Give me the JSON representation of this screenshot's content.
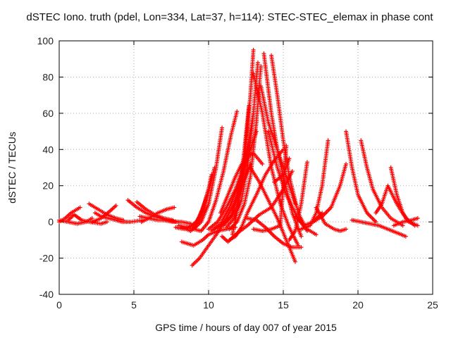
{
  "chart_data": {
    "type": "scatter",
    "title": "dSTEC Iono. truth (pdel, Lon=334, Lat=37, h=114): STEC-STEC_elemax in phase cont",
    "xlabel": "GPS time / hours of day 007 of year 2015",
    "ylabel": "dSTEC  / TECUs",
    "xlim": [
      0,
      25
    ],
    "ylim": [
      -40,
      100
    ],
    "xticks": [
      0,
      5,
      10,
      15,
      20,
      25
    ],
    "yticks": [
      -40,
      -20,
      0,
      20,
      40,
      60,
      80,
      100
    ],
    "grid": true,
    "legend": "none",
    "marker": "plus",
    "color": "#ff0000",
    "series": [
      {
        "x": [
          0,
          0.4,
          0.8,
          1.2,
          1.4
        ],
        "y": [
          0,
          2,
          5,
          7,
          8
        ]
      },
      {
        "x": [
          0,
          0.6,
          1.2,
          1.8,
          2.2
        ],
        "y": [
          1,
          0,
          -1,
          0,
          2
        ]
      },
      {
        "x": [
          0.6,
          1.0,
          1.5,
          2.0,
          2.8,
          3.2
        ],
        "y": [
          1,
          4,
          1,
          0,
          -1,
          0
        ]
      },
      {
        "x": [
          2.0,
          2.6,
          3.2,
          3.8,
          4.3
        ],
        "y": [
          10,
          7,
          4,
          2,
          1
        ]
      },
      {
        "x": [
          2.4,
          2.8,
          3.3,
          3.8,
          4.2,
          4.8,
          5.6
        ],
        "y": [
          5,
          3,
          2,
          1,
          0,
          0,
          1
        ]
      },
      {
        "x": [
          2.2,
          2.8,
          3.4,
          3.8
        ],
        "y": [
          0,
          2,
          6,
          9
        ]
      },
      {
        "x": [
          4.6,
          5.2,
          5.8,
          6.4,
          7.2
        ],
        "y": [
          12,
          8,
          5,
          3,
          1
        ]
      },
      {
        "x": [
          5.2,
          5.8,
          6.4,
          7.0,
          7.6
        ],
        "y": [
          11,
          7,
          4,
          2,
          1
        ]
      },
      {
        "x": [
          5.4,
          6.0,
          6.6,
          7.2,
          8.0
        ],
        "y": [
          3,
          2,
          1,
          1,
          0
        ]
      },
      {
        "x": [
          5.5,
          6.0,
          6.6,
          7.2,
          7.7
        ],
        "y": [
          0,
          2,
          5,
          7,
          8
        ]
      },
      {
        "x": [
          7.0,
          7.6,
          8.2,
          8.8
        ],
        "y": [
          1,
          0,
          0,
          -1
        ]
      },
      {
        "x": [
          7.8,
          8.4,
          9.0,
          9.4,
          9.8,
          10.0
        ],
        "y": [
          -3,
          -4,
          -2,
          3,
          12,
          18
        ]
      },
      {
        "x": [
          8.0,
          8.6,
          9.2,
          9.6,
          10.0,
          10.2
        ],
        "y": [
          -2,
          -3,
          0,
          7,
          18,
          26
        ]
      },
      {
        "x": [
          8.2,
          8.8,
          9.2,
          9.7,
          10.1,
          10.4
        ],
        "y": [
          -3,
          -5,
          -2,
          8,
          20,
          30
        ]
      },
      {
        "x": [
          8.5,
          9.0,
          9.5,
          10.0,
          10.5,
          10.9
        ],
        "y": [
          -3,
          -4,
          0,
          10,
          30,
          52
        ]
      },
      {
        "x": [
          9.0,
          9.5,
          10.0,
          10.5,
          11.0,
          11.5,
          11.9
        ],
        "y": [
          -4,
          -5,
          0,
          12,
          28,
          48,
          61
        ]
      },
      {
        "x": [
          8.2,
          9.0,
          9.6,
          10.0,
          10.6,
          11.2,
          11.8
        ],
        "y": [
          -11,
          -13,
          -10,
          -7,
          -5,
          -4,
          -3
        ]
      },
      {
        "x": [
          8.9,
          9.4,
          10.0,
          10.6,
          11.2,
          11.8,
          12.4,
          12.8
        ],
        "y": [
          -24,
          -20,
          -13,
          -6,
          2,
          12,
          24,
          32
        ]
      },
      {
        "x": [
          10.0,
          10.6,
          11.2,
          11.8,
          12.4,
          12.8
        ],
        "y": [
          -4,
          0,
          8,
          18,
          32,
          45
        ]
      },
      {
        "x": [
          10.2,
          10.8,
          11.4,
          12.0,
          12.6,
          13.2
        ],
        "y": [
          -5,
          -1,
          8,
          20,
          35,
          50
        ]
      },
      {
        "x": [
          10.4,
          10.8,
          11.4,
          11.8,
          12.2,
          12.6,
          13.0
        ],
        "y": [
          -4,
          -2,
          2,
          6,
          20,
          40,
          60
        ]
      },
      {
        "x": [
          11.0,
          11.5,
          12.0,
          12.4,
          12.8,
          13.0
        ],
        "y": [
          -2,
          3,
          15,
          35,
          70,
          95
        ]
      },
      {
        "x": [
          11.2,
          11.7,
          12.2,
          12.6,
          13.0,
          13.3
        ],
        "y": [
          -3,
          2,
          12,
          30,
          60,
          88
        ]
      },
      {
        "x": [
          11.4,
          11.9,
          12.4,
          12.8,
          13.2,
          13.5
        ],
        "y": [
          -4,
          0,
          10,
          25,
          55,
          86
        ]
      },
      {
        "x": [
          11.6,
          12.0,
          12.4,
          12.7
        ],
        "y": [
          -7,
          10,
          40,
          64
        ]
      },
      {
        "x": [
          10.8,
          11.3,
          11.8,
          12.4,
          13.0,
          13.6
        ],
        "y": [
          5,
          15,
          25,
          35,
          38,
          32
        ]
      },
      {
        "x": [
          11.4,
          11.8,
          12.2,
          12.6,
          13.2,
          13.8,
          14.4,
          15.0
        ],
        "y": [
          -10,
          -8,
          -3,
          5,
          15,
          26,
          34,
          40
        ]
      },
      {
        "x": [
          10.9,
          11.3,
          11.8,
          12.6,
          13.4,
          14.2,
          15.0,
          15.6
        ],
        "y": [
          -8,
          -11,
          -7,
          -2,
          4,
          8,
          18,
          28
        ]
      },
      {
        "x": [
          12.8,
          13.4,
          14.0,
          14.6,
          15.2,
          15.8
        ],
        "y": [
          30,
          22,
          12,
          2,
          -10,
          -22
        ]
      },
      {
        "x": [
          13.0,
          13.6,
          14.2,
          14.8,
          15.4,
          16.0
        ],
        "y": [
          82,
          60,
          30,
          10,
          -3,
          -13
        ]
      },
      {
        "x": [
          13.7,
          14.2,
          14.6,
          15.0,
          15.6,
          16.2
        ],
        "y": [
          93,
          60,
          40,
          25,
          5,
          -8
        ]
      },
      {
        "x": [
          14.2,
          14.6,
          15.0,
          15.4,
          16.0,
          16.6
        ],
        "y": [
          92,
          70,
          45,
          25,
          5,
          -5
        ]
      },
      {
        "x": [
          13.5,
          14.0,
          14.6,
          15.2,
          15.8
        ],
        "y": [
          75,
          55,
          40,
          25,
          10
        ]
      },
      {
        "x": [
          14.0,
          14.6,
          15.2,
          15.8,
          16.4,
          17.2
        ],
        "y": [
          50,
          30,
          15,
          5,
          -3,
          -7
        ]
      },
      {
        "x": [
          12.6,
          13.2,
          13.8,
          14.4,
          15.0,
          15.6,
          16.2
        ],
        "y": [
          2,
          1,
          -3,
          -8,
          -12,
          -14,
          -14
        ]
      },
      {
        "x": [
          13.0,
          13.6,
          14.2,
          14.8,
          15.2
        ],
        "y": [
          -4,
          -5,
          -4,
          -2,
          42
        ]
      },
      {
        "x": [
          14.4,
          15.0,
          15.4
        ],
        "y": [
          22,
          26,
          35
        ]
      },
      {
        "x": [
          15.4,
          15.8,
          16.2,
          16.6
        ],
        "y": [
          -10,
          -5,
          10,
          33
        ]
      },
      {
        "x": [
          16.2,
          16.8,
          17.2,
          17.6,
          18.0
        ],
        "y": [
          -4,
          -2,
          5,
          20,
          45
        ]
      },
      {
        "x": [
          15.8,
          16.4,
          17.0,
          17.6
        ],
        "y": [
          3,
          -2,
          0,
          5
        ]
      },
      {
        "x": [
          17.0,
          17.6,
          18.2,
          18.8,
          19.2
        ],
        "y": [
          0,
          3,
          8,
          20,
          32
        ]
      },
      {
        "x": [
          17.2,
          17.8,
          18.4,
          18.8,
          19.2
        ],
        "y": [
          8,
          -1,
          -4,
          -5,
          -4
        ]
      },
      {
        "x": [
          19.2,
          19.6,
          20.0,
          20.6,
          21.2
        ],
        "y": [
          50,
          30,
          15,
          5,
          0
        ]
      },
      {
        "x": [
          20.2,
          20.6,
          21.0,
          21.6,
          22.2,
          23.0
        ],
        "y": [
          45,
          30,
          18,
          8,
          2,
          -2
        ]
      },
      {
        "x": [
          19.6,
          20.2,
          20.8,
          21.4,
          22.0,
          22.6,
          23.2
        ],
        "y": [
          1,
          0,
          -1,
          -2,
          -4,
          -6,
          -8
        ]
      },
      {
        "x": [
          21.2,
          21.6,
          22.0,
          22.6,
          23.2,
          23.8
        ],
        "y": [
          5,
          10,
          20,
          10,
          2,
          -2
        ]
      },
      {
        "x": [
          22.2,
          22.6,
          23.0,
          23.4,
          24.0
        ],
        "y": [
          30,
          15,
          5,
          0,
          -2
        ]
      },
      {
        "x": [
          22.4,
          23.0,
          23.6,
          24.0
        ],
        "y": [
          -2,
          0,
          1,
          2
        ]
      }
    ]
  }
}
